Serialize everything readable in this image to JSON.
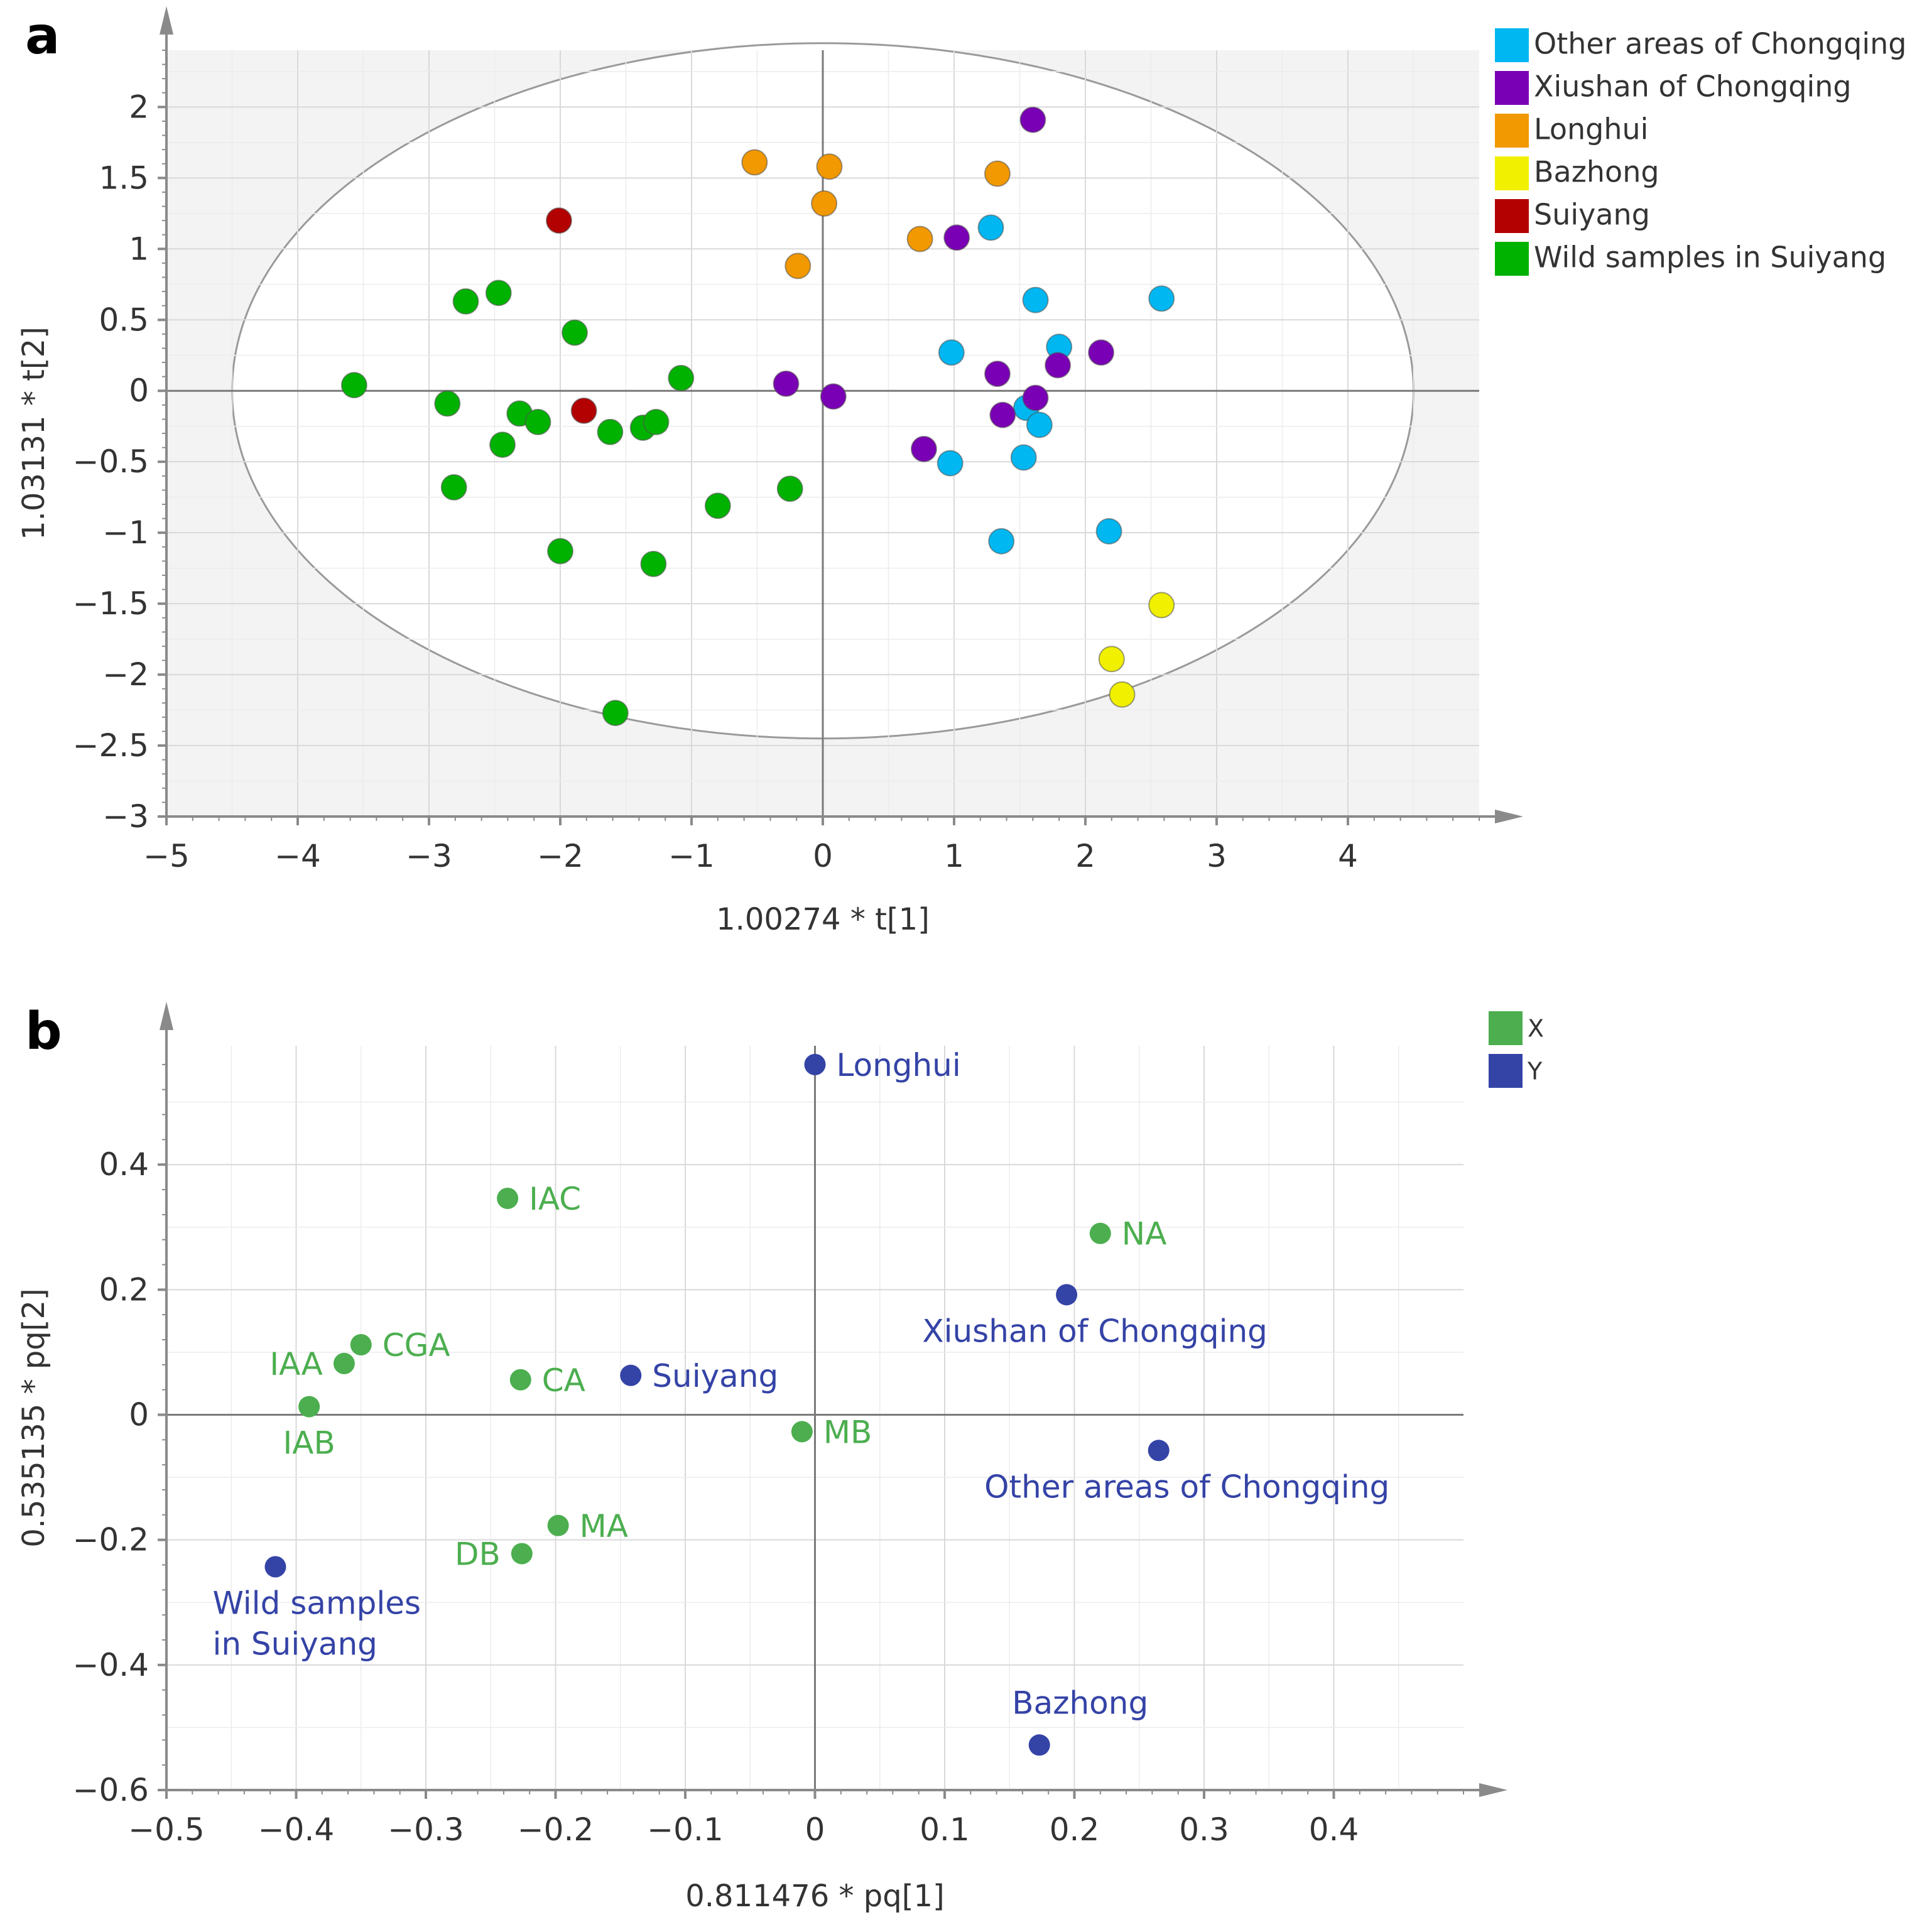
{
  "chart_data": [
    {
      "panel_label": "a",
      "type": "scatter",
      "xlabel": "1.00274 * t[1]",
      "ylabel": "1.03131 * t[2]",
      "xlim": [
        -5,
        5
      ],
      "ylim": [
        -3,
        2.4
      ],
      "xticks": [
        -5,
        -4,
        -3,
        -2,
        -1,
        0,
        1,
        2,
        3,
        4
      ],
      "yticks": [
        -3,
        -2.5,
        -2,
        -1.5,
        -1,
        -0.5,
        0,
        0.5,
        1,
        1.5,
        2
      ],
      "xtick_labels": [
        "−5",
        "−4",
        "−3",
        "−2",
        "−1",
        "0",
        "1",
        "2",
        "3",
        "4"
      ],
      "ytick_labels": [
        "−3",
        "−2.5",
        "−2",
        "−1.5",
        "−1",
        "−0.5",
        "0",
        "0.5",
        "1",
        "1.5",
        "2"
      ],
      "ellipse": {
        "cx": 0,
        "cy": 0,
        "rx": 4.5,
        "ry": 2.45
      },
      "legend_position": "right",
      "series": [
        {
          "name": "Other areas of Chongqing",
          "color": "#00b7f1",
          "points": [
            [
              2.58,
              0.65
            ],
            [
              1.62,
              0.64
            ],
            [
              1.28,
              1.15
            ],
            [
              0.98,
              0.27
            ],
            [
              1.8,
              0.31
            ],
            [
              1.55,
              -0.12
            ],
            [
              1.65,
              -0.24
            ],
            [
              1.53,
              -0.47
            ],
            [
              0.97,
              -0.51
            ],
            [
              1.36,
              -1.06
            ],
            [
              2.18,
              -0.99
            ]
          ]
        },
        {
          "name": "Xiushan of Chongqing",
          "color": "#7a00b5",
          "points": [
            [
              1.6,
              1.91
            ],
            [
              1.02,
              1.08
            ],
            [
              2.12,
              0.27
            ],
            [
              1.79,
              0.18
            ],
            [
              1.33,
              0.12
            ],
            [
              1.62,
              -0.05
            ],
            [
              1.37,
              -0.17
            ],
            [
              0.77,
              -0.41
            ],
            [
              -0.28,
              0.05
            ],
            [
              0.08,
              -0.04
            ]
          ]
        },
        {
          "name": "Longhui",
          "color": "#f29800",
          "points": [
            [
              -0.52,
              1.61
            ],
            [
              0.05,
              1.58
            ],
            [
              0.01,
              1.32
            ],
            [
              1.33,
              1.53
            ],
            [
              0.74,
              1.07
            ],
            [
              -0.19,
              0.88
            ]
          ]
        },
        {
          "name": "Bazhong",
          "color": "#f0f000",
          "points": [
            [
              2.58,
              -1.51
            ],
            [
              2.2,
              -1.89
            ],
            [
              2.28,
              -2.14
            ]
          ]
        },
        {
          "name": "Suiyang",
          "color": "#b30000",
          "points": [
            [
              -2.01,
              1.2
            ],
            [
              -1.82,
              -0.14
            ]
          ]
        },
        {
          "name": "Wild samples in Suiyang",
          "color": "#00b200",
          "points": [
            [
              -2.47,
              0.69
            ],
            [
              -2.72,
              0.63
            ],
            [
              -1.89,
              0.41
            ],
            [
              -3.57,
              0.04
            ],
            [
              -1.08,
              0.09
            ],
            [
              -2.86,
              -0.09
            ],
            [
              -2.31,
              -0.16
            ],
            [
              -2.17,
              -0.22
            ],
            [
              -1.62,
              -0.29
            ],
            [
              -1.37,
              -0.26
            ],
            [
              -1.27,
              -0.22
            ],
            [
              -2.44,
              -0.38
            ],
            [
              -2.81,
              -0.68
            ],
            [
              -0.8,
              -0.81
            ],
            [
              -0.25,
              -0.69
            ],
            [
              -2.0,
              -1.13
            ],
            [
              -1.29,
              -1.22
            ],
            [
              -1.58,
              -2.27
            ]
          ]
        }
      ]
    },
    {
      "panel_label": "b",
      "type": "scatter",
      "xlabel": "0.811476 * pq[1]",
      "ylabel": "0.535135 * pq[2]",
      "xlim": [
        -0.5,
        0.5
      ],
      "ylim": [
        -0.6,
        0.59
      ],
      "xticks": [
        -0.5,
        -0.4,
        -0.3,
        -0.2,
        -0.1,
        0,
        0.1,
        0.2,
        0.3,
        0.4
      ],
      "yticks": [
        -0.6,
        -0.4,
        -0.2,
        0,
        0.2,
        0.4
      ],
      "xtick_labels": [
        "−0.5",
        "−0.4",
        "−0.3",
        "−0.2",
        "−0.1",
        "0",
        "0.1",
        "0.2",
        "0.3",
        "0.4"
      ],
      "ytick_labels": [
        "−0.6",
        "−0.4",
        "−0.2",
        "0",
        "0.2",
        "0.4"
      ],
      "legend_position": "top-right",
      "series": [
        {
          "name": "X",
          "color": "#4cae4f",
          "points": [
            {
              "label": "IAC",
              "x": -0.237,
              "y": 0.346,
              "anchor": "right"
            },
            {
              "label": "NA",
              "x": 0.22,
              "y": 0.29,
              "anchor": "right"
            },
            {
              "label": "CGA",
              "x": -0.35,
              "y": 0.112,
              "anchor": "right"
            },
            {
              "label": "IAA",
              "x": -0.363,
              "y": 0.082,
              "anchor": "left"
            },
            {
              "label": "CA",
              "x": -0.227,
              "y": 0.056,
              "anchor": "right"
            },
            {
              "label": "IAB",
              "x": -0.39,
              "y": 0.013,
              "anchor": "below"
            },
            {
              "label": "MB",
              "x": -0.01,
              "y": -0.027,
              "anchor": "right"
            },
            {
              "label": "MA",
              "x": -0.198,
              "y": -0.177,
              "anchor": "right"
            },
            {
              "label": "DB",
              "x": -0.226,
              "y": -0.222,
              "anchor": "left"
            }
          ]
        },
        {
          "name": "Y",
          "color": "#3443a6",
          "points": [
            {
              "label": "Longhui",
              "x": 0.0,
              "y": 0.56,
              "anchor": "right"
            },
            {
              "label": "Xiushan of Chongqing",
              "x": 0.194,
              "y": 0.192,
              "anchor": "below"
            },
            {
              "label": "Suiyang",
              "x": -0.142,
              "y": 0.063,
              "anchor": "right"
            },
            {
              "label": "Other areas of Chongqing",
              "x": 0.265,
              "y": -0.057,
              "anchor": "below"
            },
            {
              "label": "Wild samples\nin Suiyang",
              "x": -0.416,
              "y": -0.243,
              "anchor": "below"
            },
            {
              "label": "Bazhong",
              "x": 0.173,
              "y": -0.528,
              "anchor": "above"
            }
          ]
        }
      ]
    }
  ]
}
